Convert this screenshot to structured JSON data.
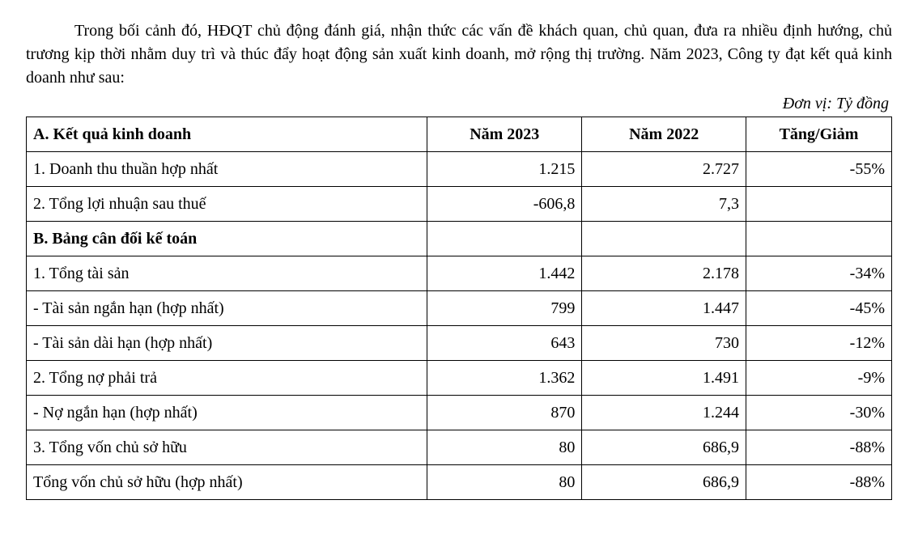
{
  "paragraph": "Trong bối cảnh đó, HĐQT chủ động đánh giá, nhận thức các vấn đề khách quan, chủ quan, đưa ra nhiều định hướng, chủ trương kịp thời nhằm duy trì và thúc đẩy hoạt động sản xuất kinh doanh, mở rộng thị trường. Năm 2023, Công ty đạt kết quả kinh doanh như sau:",
  "unit_line": "Đơn vị: Tỷ đồng",
  "table": {
    "headers": {
      "section_a": "A. Kết quả kinh doanh",
      "y2023": "Năm 2023",
      "y2022": "Năm 2022",
      "delta": "Tăng/Giảm"
    },
    "rows_a": [
      {
        "label": "1. Doanh thu thuần hợp nhất",
        "y2023": "1.215",
        "y2022": "2.727",
        "delta": "-55%"
      },
      {
        "label": "2. Tổng lợi nhuận sau thuế",
        "y2023": "-606,8",
        "y2022": "7,3",
        "delta": ""
      }
    ],
    "section_b": "B. Bảng cân đối kế toán",
    "rows_b": [
      {
        "label": "1. Tổng tài sản",
        "y2023": "1.442",
        "y2022": "2.178",
        "delta": "-34%"
      },
      {
        "label": "- Tài sản ngắn hạn (hợp nhất)",
        "y2023": "799",
        "y2022": "1.447",
        "delta": "-45%"
      },
      {
        "label": "- Tài sản dài hạn (hợp nhất)",
        "y2023": "643",
        "y2022": "730",
        "delta": "-12%"
      },
      {
        "label": "2. Tổng nợ phải trả",
        "y2023": "1.362",
        "y2022": "1.491",
        "delta": "-9%"
      },
      {
        "label": "- Nợ ngắn hạn (hợp nhất)",
        "y2023": "870",
        "y2022": "1.244",
        "delta": "-30%"
      },
      {
        "label": "3. Tổng vốn chủ sở hữu",
        "y2023": "80",
        "y2022": "686,9",
        "delta": "-88%"
      },
      {
        "label": "Tổng vốn chủ sở hữu (hợp nhất)",
        "y2023": "80",
        "y2022": "686,9",
        "delta": "-88%"
      }
    ]
  }
}
